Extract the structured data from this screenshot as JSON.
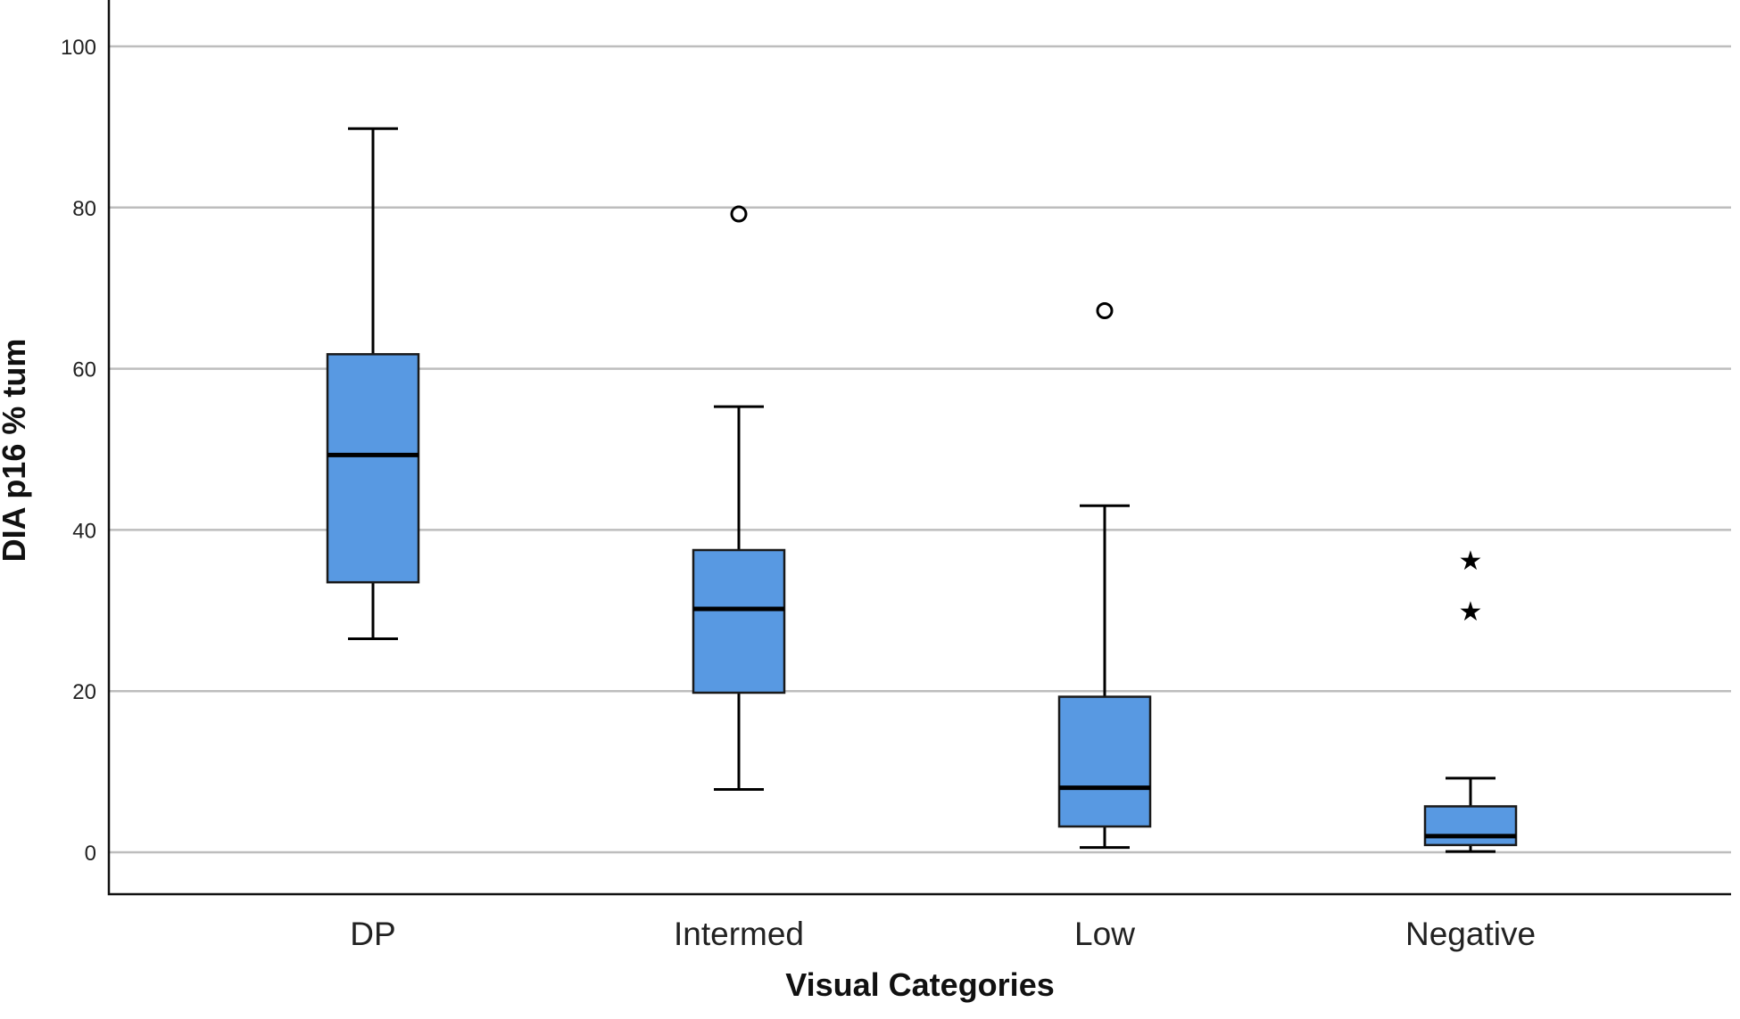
{
  "chart_data": {
    "type": "boxplot",
    "title": "",
    "xlabel": "Visual Categories",
    "ylabel": "DIA p16 % tum",
    "ylim": [
      -5,
      105
    ],
    "yticks": [
      0,
      20,
      40,
      60,
      80,
      100
    ],
    "ytick_labels": [
      "0",
      "20",
      "40",
      "60",
      "80",
      "100"
    ],
    "grid": true,
    "box_color": "#5899E2",
    "categories": [
      "DP",
      "Intermed",
      "Low",
      "Negative"
    ],
    "boxes": [
      {
        "name": "DP",
        "whisker_low": 26.5,
        "q1": 33.5,
        "median": 49.3,
        "q3": 61.8,
        "whisker_high": 89.8,
        "outliers": [],
        "extremes": []
      },
      {
        "name": "Intermed",
        "whisker_low": 7.8,
        "q1": 19.8,
        "median": 30.2,
        "q3": 37.5,
        "whisker_high": 55.3,
        "outliers": [
          79.2
        ],
        "extremes": []
      },
      {
        "name": "Low",
        "whisker_low": 0.6,
        "q1": 3.2,
        "median": 8.0,
        "q3": 19.3,
        "whisker_high": 43.0,
        "outliers": [
          67.2
        ],
        "extremes": []
      },
      {
        "name": "Negative",
        "whisker_low": 0.1,
        "q1": 0.9,
        "median": 2.0,
        "q3": 5.7,
        "whisker_high": 9.2,
        "outliers": [],
        "extremes": [
          36.3,
          30.0
        ]
      }
    ]
  }
}
